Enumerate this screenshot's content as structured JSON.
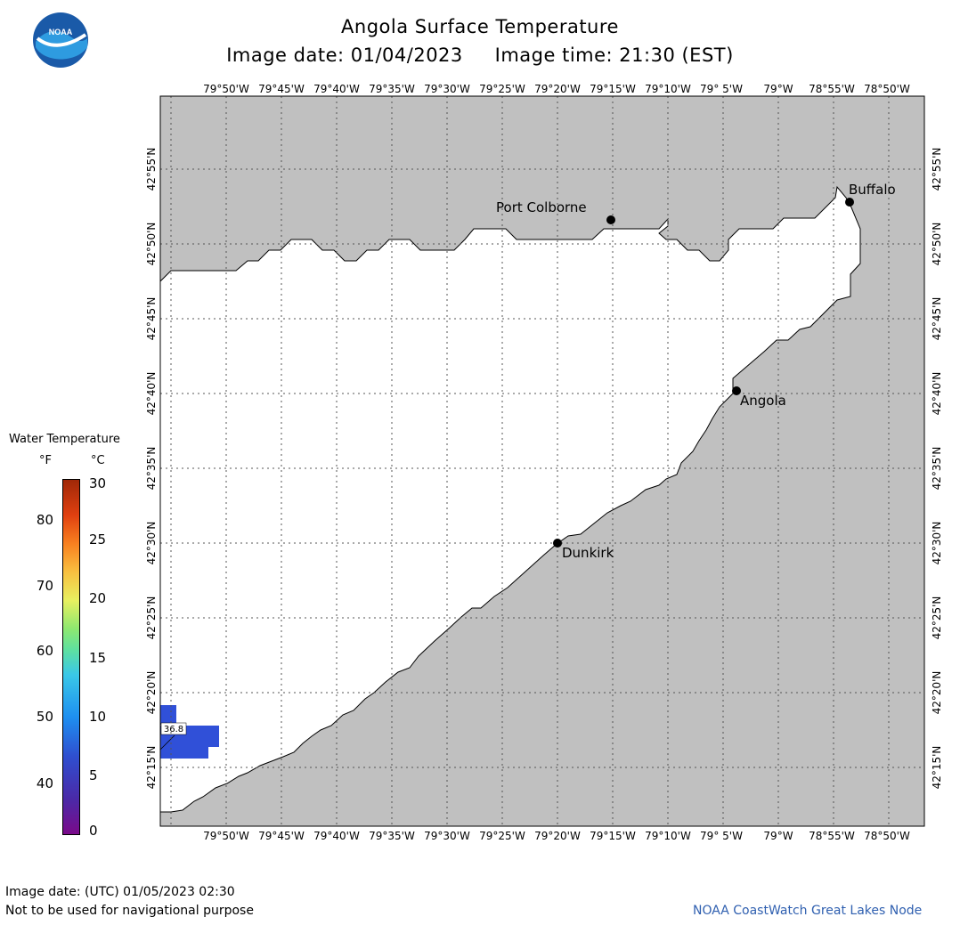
{
  "header": {
    "title": "Angola Surface Temperature",
    "subtitle": "Image date: 01/04/2023     Image time: 21:30 (EST)",
    "logo_text": "NOAA"
  },
  "map": {
    "lon_labels": [
      "79°50'W",
      "79°45'W",
      "79°40'W",
      "79°35'W",
      "79°30'W",
      "79°25'W",
      "79°20'W",
      "79°15'W",
      "79°10'W",
      "79° 5'W",
      "79°W",
      "78°55'W",
      "78°50'W"
    ],
    "lat_labels": [
      "42°55'N",
      "42°50'N",
      "42°45'N",
      "42°40'N",
      "42°35'N",
      "42°30'N",
      "42°25'N",
      "42°20'N",
      "42°15'N"
    ],
    "cities": [
      {
        "name": "Port Colborne"
      },
      {
        "name": "Buffalo"
      },
      {
        "name": "Angola"
      },
      {
        "name": "Dunkirk"
      }
    ],
    "temperature_readout": "36.8",
    "land_color": "#c0c0c0",
    "water_color": "#ffffff",
    "reading_color": "#3050d8"
  },
  "legend": {
    "title": "Water Temperature",
    "unit_f": "°F",
    "unit_c": "°C",
    "f_ticks": [
      "80",
      "70",
      "60",
      "50",
      "40"
    ],
    "c_ticks": [
      "30",
      "25",
      "20",
      "15",
      "10",
      "5",
      "0"
    ]
  },
  "footer": {
    "utc_date": "Image date: (UTC) 01/05/2023  02:30",
    "disclaimer": "Not to be used for navigational purpose",
    "credit": "NOAA CoastWatch Great Lakes Node",
    "credit_color": "#3060b0"
  }
}
